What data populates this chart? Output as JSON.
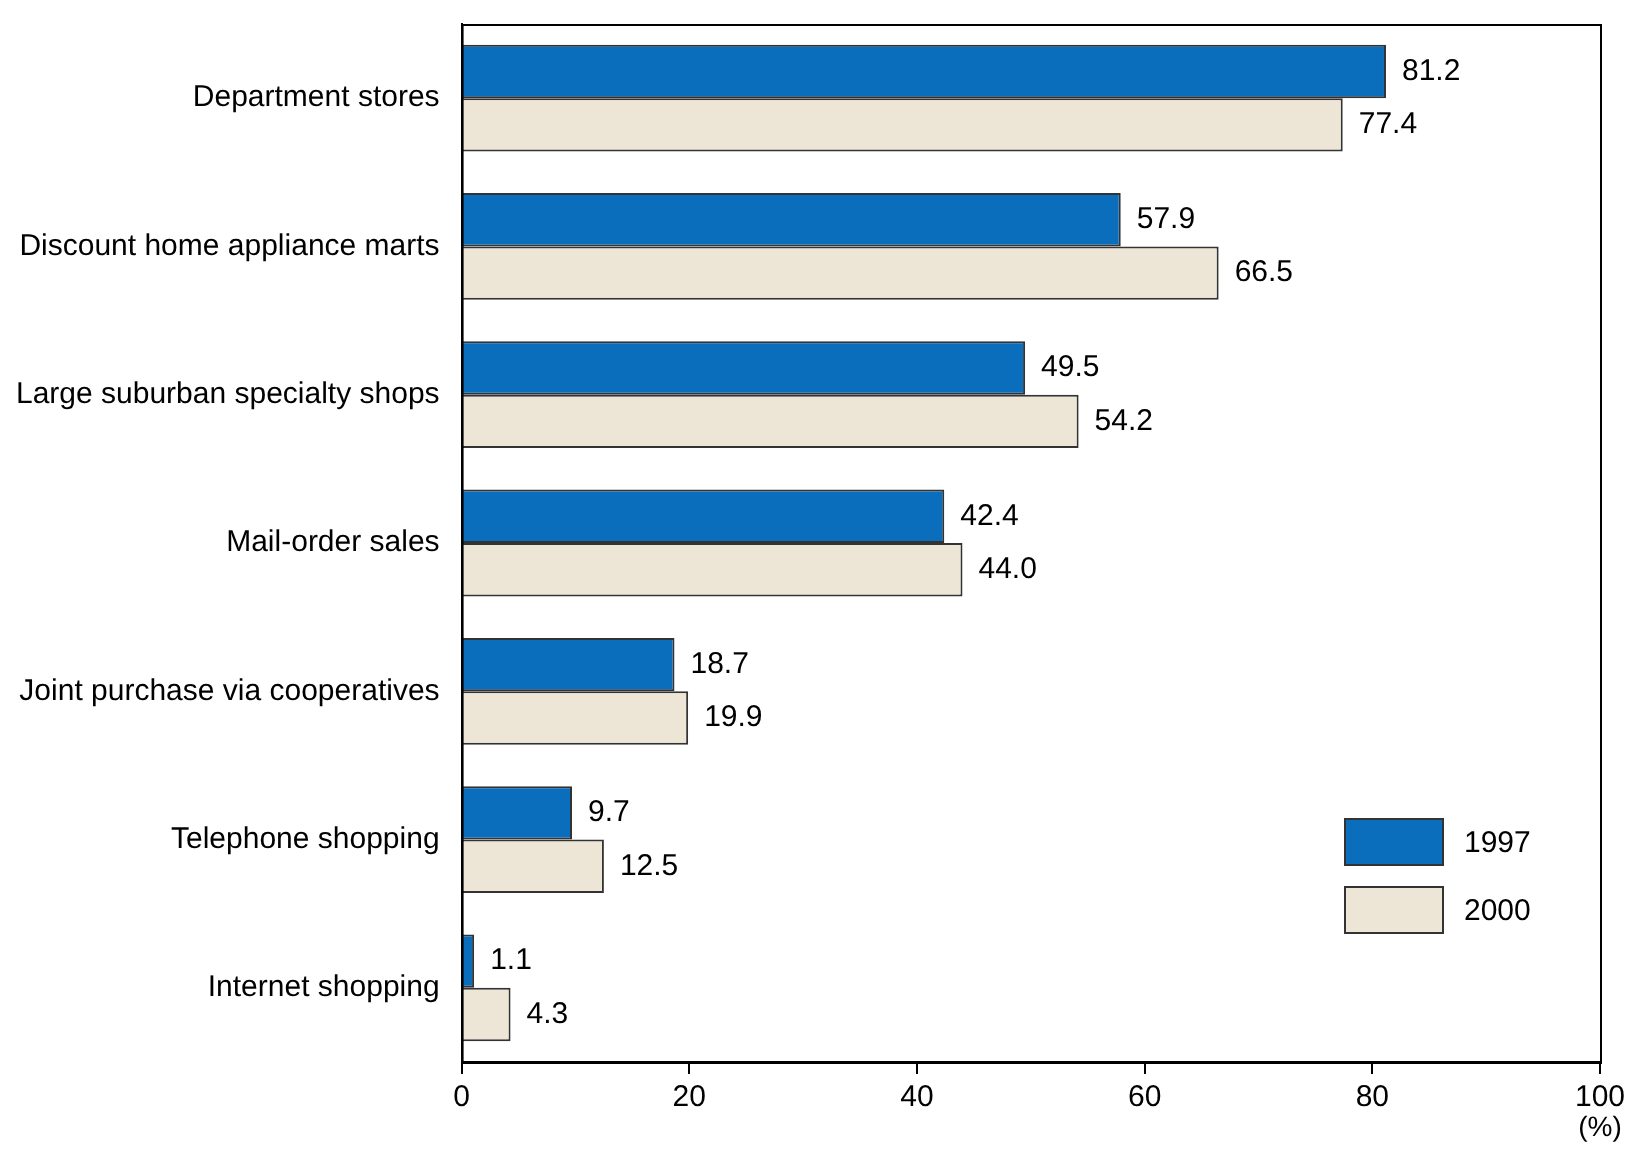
{
  "chart_data": {
    "type": "bar",
    "orientation": "horizontal",
    "xlabel": "(%)",
    "categories": [
      "Department stores",
      "Discount home appliance marts",
      "Large suburban specialty shops",
      "Mail-order sales",
      "Joint purchase via cooperatives",
      "Telephone shopping",
      "Internet shopping"
    ],
    "series": [
      {
        "name": "1997",
        "color": "#0a6ebd",
        "values": [
          81.2,
          57.9,
          49.5,
          42.4,
          18.7,
          9.7,
          1.1
        ]
      },
      {
        "name": "2000",
        "color": "#ede6d6",
        "values": [
          77.4,
          66.5,
          54.2,
          44.0,
          19.9,
          12.5,
          4.3
        ]
      }
    ],
    "value_labels": [
      [
        "81.2",
        "57.9",
        "49.5",
        "42.4",
        "18.7",
        "9.7",
        "1.1"
      ],
      [
        "77.4",
        "66.5",
        "54.2",
        "44.0",
        "19.9",
        "12.5",
        "4.3"
      ]
    ],
    "xlim": [
      0,
      100
    ],
    "xticks": [
      0,
      20,
      40,
      60,
      80,
      100
    ],
    "grid": false,
    "legend": "bottom right"
  }
}
